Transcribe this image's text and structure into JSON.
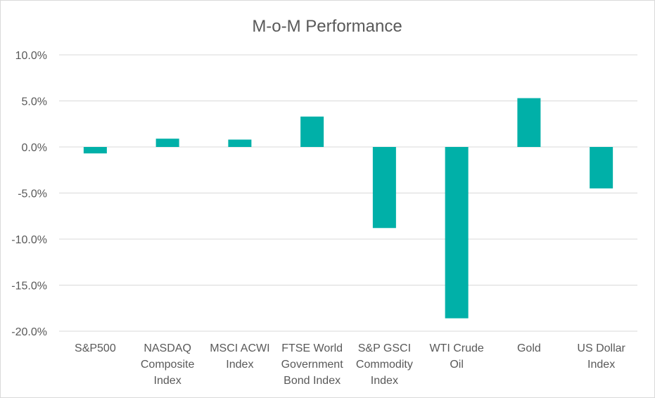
{
  "chart_data": {
    "type": "bar",
    "title": "M-o-M Performance",
    "xlabel": "",
    "ylabel": "",
    "categories": [
      [
        "S&P500"
      ],
      [
        "NASDAQ",
        "Composite",
        "Index"
      ],
      [
        "MSCI ACWI",
        "Index"
      ],
      [
        "FTSE World",
        "Government",
        "Bond Index"
      ],
      [
        "S&P GSCI",
        "Commodity",
        "Index"
      ],
      [
        "WTI Crude",
        "Oil"
      ],
      [
        "Gold"
      ],
      [
        "US Dollar",
        "Index"
      ]
    ],
    "values": [
      -0.7,
      0.9,
      0.8,
      3.3,
      -8.8,
      -18.6,
      5.3,
      -4.5
    ],
    "ylim": [
      -20,
      10
    ],
    "yticks": [
      10,
      5,
      0,
      -5,
      -10,
      -15,
      -20
    ],
    "ytick_labels": [
      "10.0%",
      "5.0%",
      "0.0%",
      "-5.0%",
      "-10.0%",
      "-15.0%",
      "-20.0%"
    ],
    "bar_color": "#00B0A8",
    "grid": true,
    "legend": "none"
  }
}
